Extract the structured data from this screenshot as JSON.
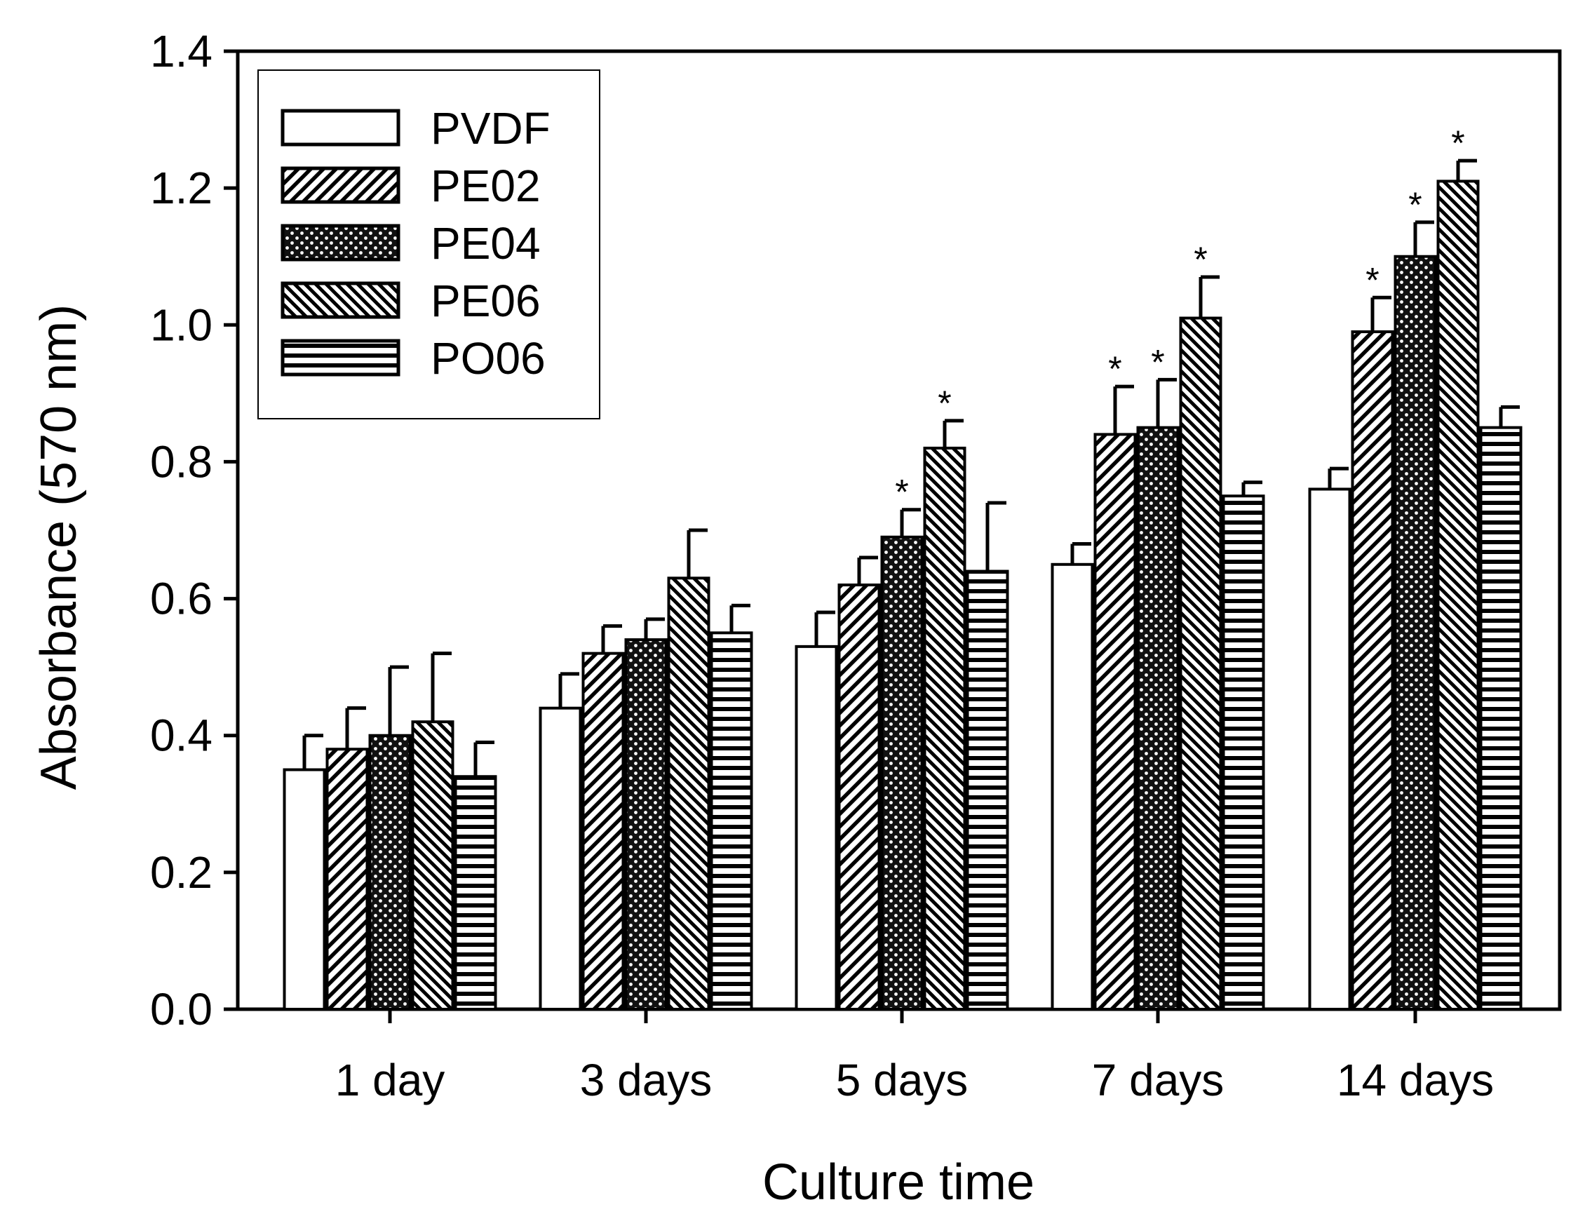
{
  "chart_data": {
    "type": "bar",
    "title": "",
    "xlabel": "Culture time",
    "ylabel": "Absorbance (570 nm)",
    "ylim": [
      0.0,
      1.4
    ],
    "yticks": [
      0.0,
      0.2,
      0.4,
      0.6,
      0.8,
      1.0,
      1.2,
      1.4
    ],
    "ytick_labels": [
      "0.0",
      "0.2",
      "0.4",
      "0.6",
      "0.8",
      "1.0",
      "1.2",
      "1.4"
    ],
    "categories": [
      "1 day",
      "3 days",
      "5 days",
      "7 days",
      "14 days"
    ],
    "legend_position": "top-left",
    "significance_marker": "*",
    "series": [
      {
        "name": "PVDF",
        "pattern": "open",
        "values": [
          0.35,
          0.44,
          0.53,
          0.65,
          0.76
        ],
        "errors": [
          0.05,
          0.05,
          0.05,
          0.03,
          0.03
        ],
        "significant": [
          false,
          false,
          false,
          false,
          false
        ]
      },
      {
        "name": "PE02",
        "pattern": "diagonal-up",
        "values": [
          0.38,
          0.52,
          0.62,
          0.84,
          0.99
        ],
        "errors": [
          0.06,
          0.04,
          0.04,
          0.07,
          0.05
        ],
        "significant": [
          false,
          false,
          false,
          true,
          true
        ]
      },
      {
        "name": "PE04",
        "pattern": "dots",
        "values": [
          0.4,
          0.54,
          0.69,
          0.85,
          1.1
        ],
        "errors": [
          0.1,
          0.03,
          0.04,
          0.07,
          0.05
        ],
        "significant": [
          false,
          false,
          true,
          true,
          true
        ]
      },
      {
        "name": "PE06",
        "pattern": "diagonal-down",
        "values": [
          0.42,
          0.63,
          0.82,
          1.01,
          1.21
        ],
        "errors": [
          0.1,
          0.07,
          0.04,
          0.06,
          0.03
        ],
        "significant": [
          false,
          false,
          true,
          true,
          true
        ]
      },
      {
        "name": "PO06",
        "pattern": "horizontal",
        "values": [
          0.34,
          0.55,
          0.64,
          0.75,
          0.85
        ],
        "errors": [
          0.05,
          0.04,
          0.1,
          0.02,
          0.03
        ],
        "significant": [
          false,
          false,
          false,
          false,
          false
        ]
      }
    ]
  }
}
